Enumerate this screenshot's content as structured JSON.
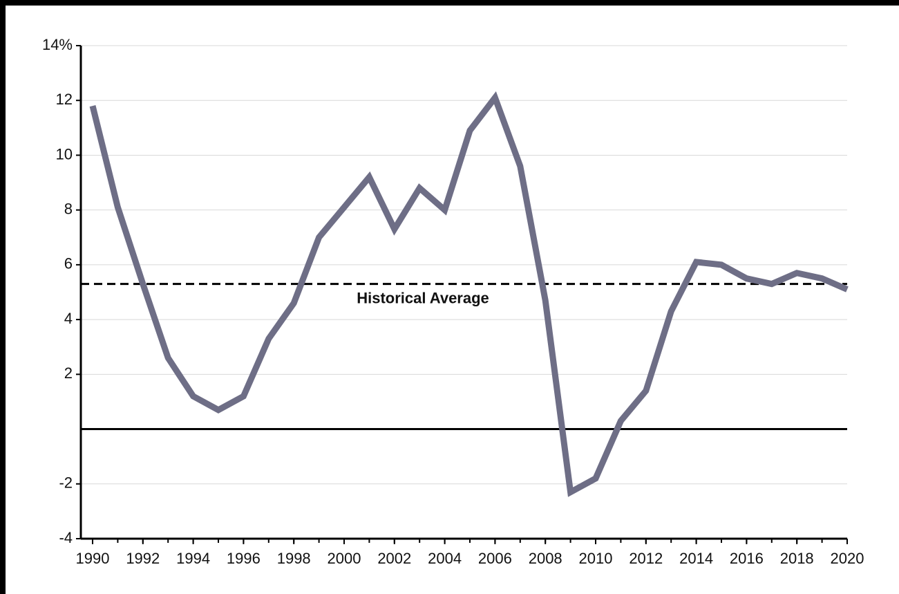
{
  "chart_data": {
    "type": "line",
    "x": [
      1990,
      1991,
      1992,
      1993,
      1994,
      1995,
      1996,
      1997,
      1998,
      1999,
      2000,
      2001,
      2002,
      2003,
      2004,
      2005,
      2006,
      2007,
      2008,
      2009,
      2010,
      2011,
      2012,
      2013,
      2014,
      2015,
      2016,
      2017,
      2018,
      2019,
      2020
    ],
    "series": [
      {
        "color": "#6e6e86",
        "values": [
          11.8,
          8.1,
          5.3,
          2.6,
          1.2,
          0.7,
          1.2,
          3.3,
          4.6,
          7.0,
          8.1,
          9.2,
          7.3,
          8.8,
          8.0,
          10.9,
          12.1,
          9.6,
          4.7,
          -2.3,
          -1.8,
          0.3,
          1.4,
          4.3,
          6.1,
          6.0,
          5.5,
          5.3,
          5.7,
          5.5,
          5.1
        ]
      }
    ],
    "xlim": [
      1990,
      2020
    ],
    "xticks": [
      1990,
      1992,
      1994,
      1996,
      1998,
      2000,
      2002,
      2004,
      2006,
      2008,
      2010,
      2012,
      2014,
      2016,
      2018,
      2020
    ],
    "ylim": [
      -4,
      14
    ],
    "yticks": [
      -4,
      -2,
      2,
      4,
      6,
      8,
      10,
      12,
      {
        "value": 14,
        "label": "14%"
      }
    ],
    "grid": true,
    "annotations": [
      {
        "text": "Historical Average",
        "value": 5.3
      }
    ]
  }
}
